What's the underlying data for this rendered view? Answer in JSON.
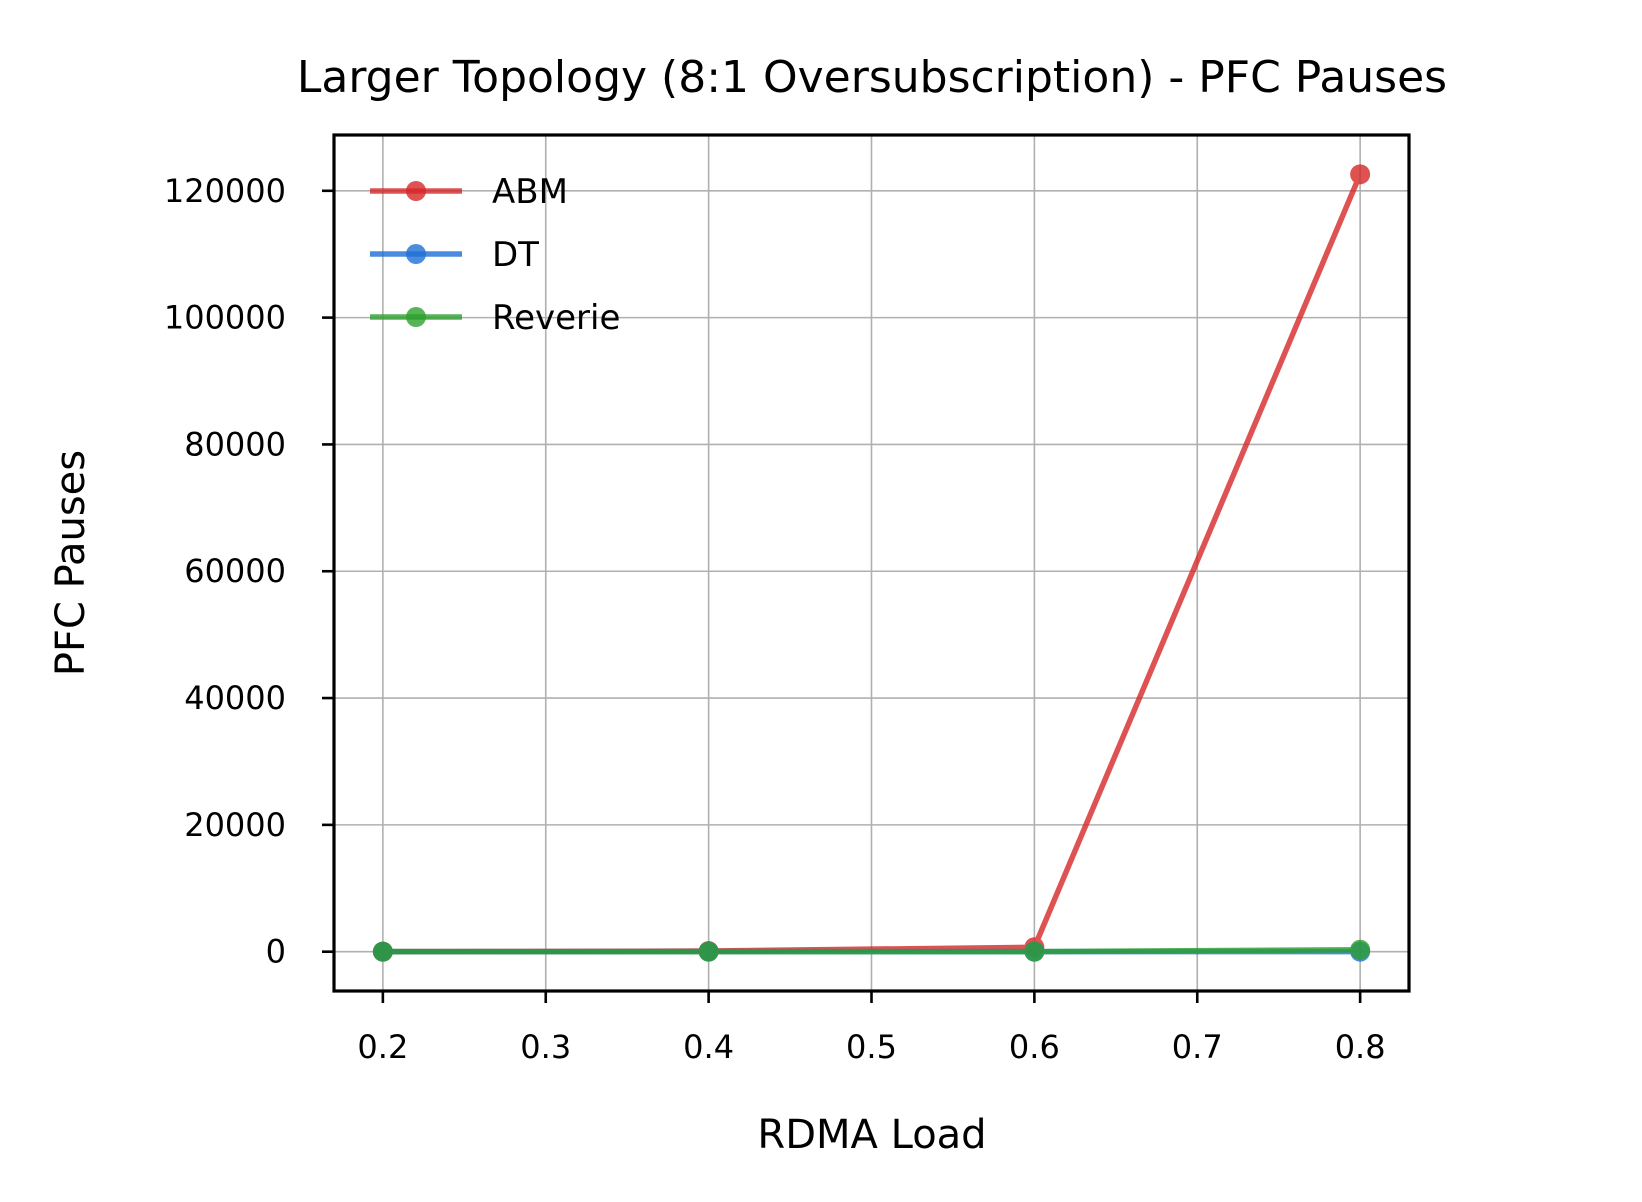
{
  "chart_data": {
    "type": "line",
    "title": "Larger Topology (8:1 Oversubscription) - PFC Pauses",
    "xlabel": "RDMA Load",
    "ylabel": "PFC Pauses",
    "x": [
      0.2,
      0.4,
      0.6,
      0.8
    ],
    "xticks": [
      "0.2",
      "0.3",
      "0.4",
      "0.5",
      "0.6",
      "0.7",
      "0.8"
    ],
    "yticks": [
      "0",
      "20000",
      "40000",
      "60000",
      "80000",
      "100000",
      "120000"
    ],
    "xlim": [
      0.17,
      0.83
    ],
    "ylim": [
      -6200,
      128800
    ],
    "grid": true,
    "legend_position": "top-left",
    "series": [
      {
        "name": "ABM",
        "color": "#d62728",
        "values": [
          0,
          100,
          700,
          122600
        ]
      },
      {
        "name": "DT",
        "color": "#1f6fd6",
        "values": [
          0,
          0,
          0,
          0
        ]
      },
      {
        "name": "Reverie",
        "color": "#2ca02c",
        "values": [
          0,
          0,
          0,
          300
        ]
      }
    ]
  }
}
